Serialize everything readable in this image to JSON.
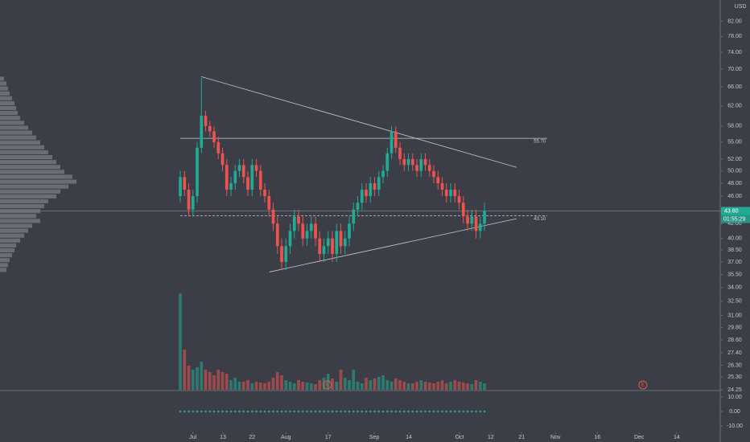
{
  "chart_data": {
    "type": "candlestick",
    "currency": "USD",
    "log_scale": true,
    "xlim": [
      -42.67,
      127.8
    ],
    "ylim": [
      24.25,
      88
    ],
    "up_color": "#22ab94",
    "down_color": "#ef5350",
    "xticks": [
      {
        "value": 3.0,
        "label": "Jul"
      },
      {
        "value": 10.1,
        "label": "13"
      },
      {
        "value": 17.0,
        "label": "22"
      },
      {
        "value": 25.0,
        "label": "Aug"
      },
      {
        "value": 35.0,
        "label": "17"
      },
      {
        "value": 45.9,
        "label": "Sep"
      },
      {
        "value": 54.1,
        "label": "14"
      },
      {
        "value": 66.1,
        "label": "Oct"
      },
      {
        "value": 73.5,
        "label": "12"
      },
      {
        "value": 80.8,
        "label": "21"
      },
      {
        "value": 88.8,
        "label": "Nov"
      },
      {
        "value": 98.7,
        "label": "16"
      },
      {
        "value": 108.6,
        "label": "Dec"
      },
      {
        "value": 117.5,
        "label": "14"
      }
    ],
    "yticks": [
      {
        "value": 82,
        "label": "82.00"
      },
      {
        "value": 78,
        "label": "78.00"
      },
      {
        "value": 74,
        "label": "74.00"
      },
      {
        "value": 70,
        "label": "70.00"
      },
      {
        "value": 66,
        "label": "66.00"
      },
      {
        "value": 62,
        "label": "62.00"
      },
      {
        "value": 58,
        "label": "58.00"
      },
      {
        "value": 55,
        "label": "55.00"
      },
      {
        "value": 52,
        "label": "52.00"
      },
      {
        "value": 50,
        "label": "50.00"
      },
      {
        "value": 48,
        "label": "48.00"
      },
      {
        "value": 46,
        "label": "46.00"
      },
      {
        "value": 42,
        "label": "42.00"
      },
      {
        "value": 40,
        "label": "40.00"
      },
      {
        "value": 38.5,
        "label": "38.50"
      },
      {
        "value": 37,
        "label": "37.00"
      },
      {
        "value": 35.5,
        "label": "35.50"
      },
      {
        "value": 34,
        "label": "34.00"
      },
      {
        "value": 32.5,
        "label": "32.50"
      },
      {
        "value": 31,
        "label": "31.00"
      },
      {
        "value": 29.8,
        "label": "29.80"
      },
      {
        "value": 28.6,
        "label": "28.60"
      },
      {
        "value": 27.4,
        "label": "27.40"
      },
      {
        "value": 26.3,
        "label": "26.30"
      },
      {
        "value": 25.3,
        "label": "25.30"
      },
      {
        "value": 24.25,
        "label": "24.25"
      }
    ],
    "open": [
      46,
      49,
      47,
      44,
      46,
      54,
      60,
      58,
      57,
      55,
      53,
      51,
      47,
      48,
      50,
      51,
      49,
      47,
      51,
      50,
      47,
      46,
      44,
      42,
      39,
      37,
      39,
      41,
      43,
      42,
      40,
      41,
      42,
      40,
      38,
      39,
      40,
      38,
      41,
      39,
      40,
      42,
      44,
      45,
      47,
      46,
      48,
      47,
      49,
      50,
      53,
      57,
      54,
      52,
      51,
      52,
      51,
      50,
      52,
      51,
      50,
      49,
      48,
      47,
      46,
      47,
      46,
      45,
      43,
      42,
      43,
      41,
      42
    ],
    "high": [
      50,
      50,
      48,
      47,
      55,
      68,
      61,
      59,
      58,
      56,
      54,
      52,
      49,
      51,
      52,
      52,
      50,
      52,
      52,
      51,
      48,
      47,
      45,
      43,
      40,
      40,
      42,
      44,
      44,
      43,
      42,
      43,
      43,
      41,
      40,
      41,
      41,
      42,
      42,
      41,
      43,
      45,
      46,
      48,
      48,
      49,
      49,
      50,
      51,
      54,
      58,
      58,
      55,
      53,
      53,
      53,
      52,
      53,
      53,
      52,
      51,
      50,
      49,
      48,
      48,
      48,
      47,
      46,
      44,
      44,
      44,
      43,
      45
    ],
    "low": [
      45,
      46,
      43,
      43,
      45,
      53,
      57,
      56,
      54,
      52,
      50,
      46,
      46,
      47,
      49,
      48,
      46,
      46,
      49,
      46,
      45,
      43,
      41,
      38,
      36,
      36,
      38,
      40,
      41,
      39,
      39,
      40,
      39,
      37,
      37,
      38,
      37,
      37,
      38,
      38,
      39,
      41,
      43,
      44,
      45,
      45,
      46,
      46,
      48,
      49,
      52,
      53,
      51,
      50,
      50,
      50,
      49,
      49,
      50,
      49,
      48,
      47,
      46,
      45,
      45,
      45,
      44,
      42,
      41,
      41,
      40,
      40,
      41
    ],
    "close": [
      49,
      47,
      44,
      46,
      54,
      60,
      58,
      57,
      55,
      53,
      51,
      47,
      48,
      50,
      51,
      49,
      47,
      51,
      50,
      47,
      46,
      44,
      42,
      39,
      37,
      39,
      41,
      43,
      42,
      40,
      41,
      42,
      40,
      38,
      39,
      40,
      38,
      41,
      39,
      40,
      42,
      44,
      45,
      47,
      46,
      48,
      47,
      49,
      50,
      53,
      57,
      54,
      52,
      51,
      52,
      51,
      50,
      52,
      51,
      50,
      49,
      48,
      47,
      46,
      47,
      46,
      45,
      43,
      42,
      43,
      41,
      42,
      43.8
    ],
    "volume": {
      "vlim": [
        0,
        130
      ],
      "values": [
        120,
        50,
        30,
        25,
        28,
        35,
        25,
        22,
        18,
        25,
        22,
        20,
        12,
        15,
        10,
        10,
        12,
        8,
        10,
        9,
        8,
        10,
        15,
        22,
        18,
        12,
        10,
        8,
        12,
        10,
        9,
        8,
        7,
        12,
        15,
        20,
        14,
        10,
        25,
        15,
        12,
        25,
        10,
        8,
        15,
        12,
        14,
        16,
        18,
        12,
        10,
        14,
        12,
        10,
        8,
        8,
        10,
        12,
        10,
        9,
        8,
        10,
        12,
        8,
        10,
        12,
        10,
        9,
        8,
        7,
        12,
        10,
        8
      ]
    },
    "volume_profile": {
      "high": 68.3,
      "low": 35.7,
      "color": "#8a8d94",
      "values": [
        5,
        8,
        10,
        12,
        15,
        18,
        20,
        22,
        25,
        30,
        35,
        40,
        45,
        50,
        55,
        60,
        65,
        70,
        75,
        80,
        90,
        95,
        85,
        75,
        70,
        60,
        55,
        50,
        45,
        50,
        40,
        35,
        30,
        25,
        20,
        18,
        15,
        12,
        10,
        8
      ]
    },
    "trendlines": [
      {
        "x1": 4.95,
        "y1": 68.3,
        "x2": 79.6,
        "y2": 50.6
      },
      {
        "x1": 21.1,
        "y1": 35.8,
        "x2": 79.6,
        "y2": 42.7
      }
    ],
    "levels": [
      {
        "value": 55.7,
        "label": "55.70",
        "x1": 0,
        "x2": 86.9,
        "dashed": false
      },
      {
        "value": 43.1,
        "label": "43.10",
        "x1": 0,
        "x2": 86.9,
        "dashed": true
      }
    ],
    "last_price": {
      "value": 43.8,
      "label": "43.80",
      "countdown": "01:55:29"
    },
    "events": [
      {
        "x": 34.8,
        "label": "E"
      },
      {
        "x": 109.5,
        "label": "E"
      }
    ],
    "indicator": {
      "ilim": [
        -13.3,
        13.3
      ],
      "color": "#26a69a",
      "yticks": [
        {
          "value": 10,
          "label": "10.00"
        },
        {
          "value": 0,
          "label": "0.00"
        },
        {
          "value": -10,
          "label": "-10.00"
        }
      ],
      "values": [
        0,
        0,
        0,
        0,
        0,
        0,
        0,
        0,
        0,
        0,
        0,
        0,
        0,
        0,
        0,
        0,
        0,
        0,
        0,
        0,
        0,
        0,
        0,
        0,
        0,
        0,
        0,
        0,
        0,
        0,
        0,
        0,
        0,
        0,
        0,
        0,
        0,
        0,
        0,
        0,
        0,
        0,
        0,
        0,
        0,
        0,
        0,
        0,
        0,
        0,
        0,
        0,
        0,
        0,
        0,
        0,
        0,
        0,
        0,
        0,
        0,
        0,
        0,
        0,
        0,
        0,
        0,
        0,
        0,
        0,
        0,
        0,
        0
      ]
    }
  }
}
